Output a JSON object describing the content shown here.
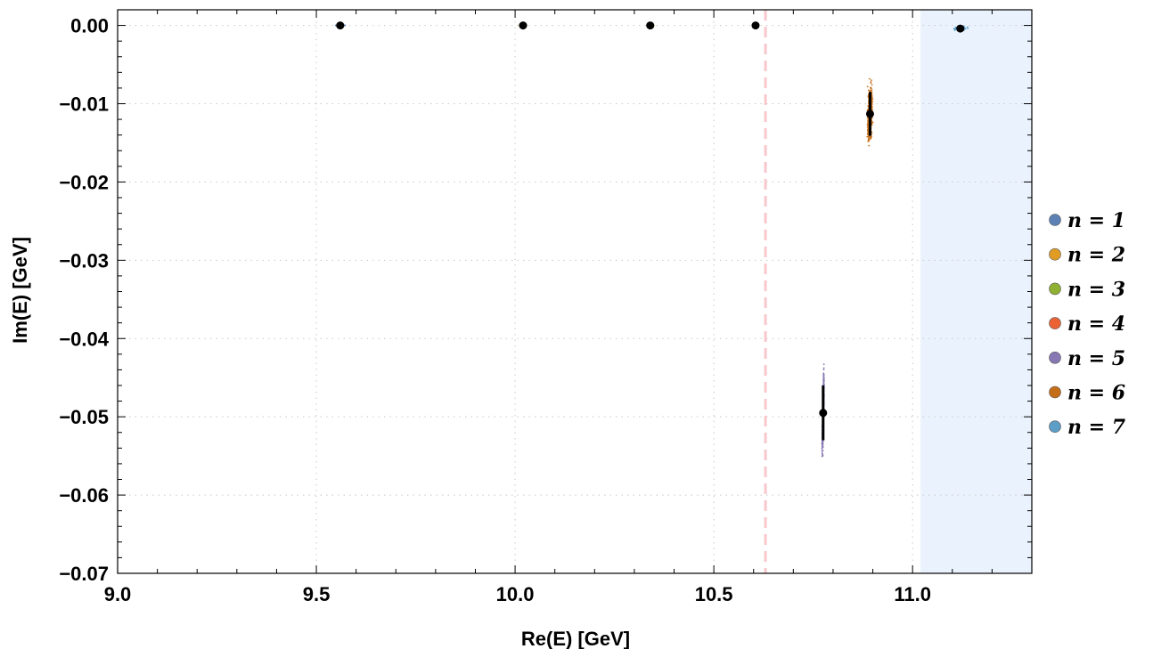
{
  "chart_data": {
    "type": "scatter",
    "xlabel": "Re(E) [GeV]",
    "ylabel": "Im(E) [GeV]",
    "xlim": [
      9.0,
      11.3
    ],
    "ylim": [
      -0.07,
      0.002
    ],
    "x_ticks": [
      "9.0",
      "9.5",
      "10.0",
      "10.5",
      "11.0"
    ],
    "x_tick_values": [
      9.0,
      9.5,
      10.0,
      10.5,
      11.0
    ],
    "y_ticks": [
      "0.00",
      "−0.01",
      "−0.02",
      "−0.03",
      "−0.04",
      "−0.05",
      "−0.06",
      "−0.07"
    ],
    "y_tick_values": [
      0.0,
      -0.01,
      -0.02,
      -0.03,
      -0.04,
      -0.05,
      -0.06,
      -0.07
    ],
    "grid": "dotted",
    "legend_position": "right",
    "threshold_line": {
      "x": 10.63,
      "color": "#f8c8cc",
      "style": "dashed"
    },
    "shaded_region": {
      "x_from": 11.02,
      "x_to": 11.3,
      "color": "#eaf3fd"
    },
    "series": [
      {
        "name": "n = 1",
        "color": "#5e81b5",
        "center": [
          9.56,
          0.0
        ],
        "x_spread": 0.03,
        "y_spread": 0.0,
        "error": [
          0.0,
          0.0
        ]
      },
      {
        "name": "n = 2",
        "color": "#e19c24",
        "center": [
          10.02,
          0.0
        ],
        "x_spread": 0.02,
        "y_spread": 0.0,
        "error": [
          0.0,
          0.0
        ]
      },
      {
        "name": "n = 3",
        "color": "#8fb032",
        "center": [
          10.34,
          0.0
        ],
        "x_spread": 0.02,
        "y_spread": 0.0,
        "error": [
          0.0,
          0.0
        ]
      },
      {
        "name": "n = 4",
        "color": "#eb6235",
        "center": [
          10.605,
          0.0
        ],
        "x_spread": 0.01,
        "y_spread": 0.0,
        "error": [
          0.0,
          0.0
        ]
      },
      {
        "name": "n = 5",
        "color": "#8778b3",
        "center": [
          10.775,
          -0.0495
        ],
        "x_spread": 0.004,
        "y_spread": 0.0125,
        "error": [
          0.0,
          0.0035
        ]
      },
      {
        "name": "n = 6",
        "color": "#c56e1a",
        "center": [
          10.893,
          -0.0113
        ],
        "x_spread": 0.015,
        "y_spread": 0.0085,
        "error": [
          0.0,
          0.0028
        ]
      },
      {
        "name": "n = 7",
        "color": "#5d9ec7",
        "center": [
          11.12,
          -0.0004
        ],
        "x_spread": 0.04,
        "y_spread": 0.0007,
        "error": [
          0.0,
          0.0
        ]
      }
    ]
  }
}
